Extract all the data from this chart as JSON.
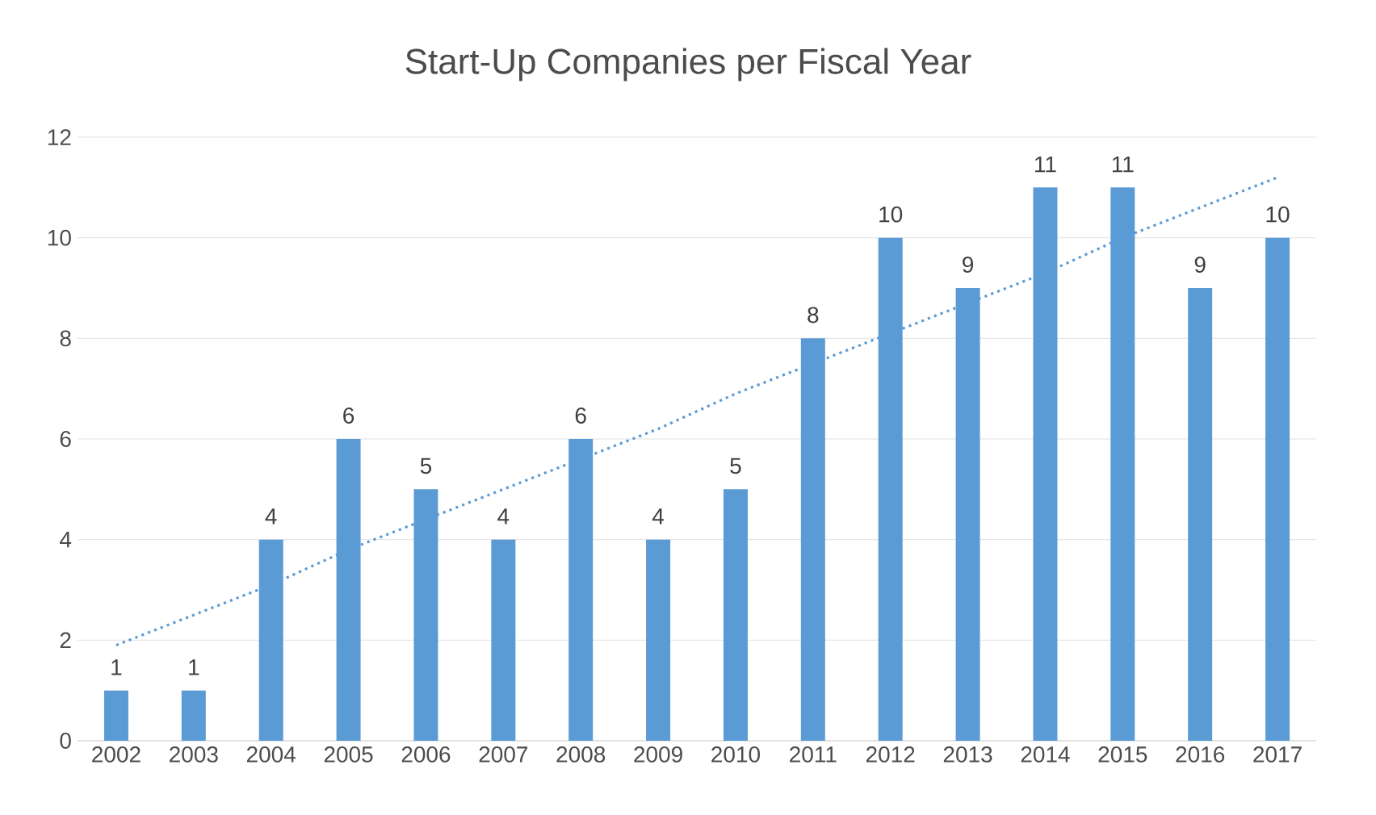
{
  "chart_data": {
    "type": "bar",
    "title": "Start-Up Companies per Fiscal Year",
    "categories": [
      "2002",
      "2003",
      "2004",
      "2005",
      "2006",
      "2007",
      "2008",
      "2009",
      "2010",
      "2011",
      "2012",
      "2013",
      "2014",
      "2015",
      "2016",
      "2017"
    ],
    "series": [
      {
        "color": "#5b9bd5",
        "data_labels": true,
        "values": [
          1,
          1,
          4,
          6,
          5,
          4,
          6,
          4,
          5,
          8,
          10,
          9,
          11,
          11,
          9,
          10
        ]
      },
      {
        "type": "line",
        "color": "#5b9bd5",
        "line_style": "dotted",
        "values": [
          1.9,
          2.5,
          3.1,
          3.8,
          4.4,
          5.0,
          5.6,
          6.2,
          6.9,
          7.5,
          8.1,
          8.7,
          9.3,
          10.0,
          10.6,
          11.2
        ]
      }
    ],
    "ylim": [
      0,
      12
    ],
    "yticks": [
      0,
      2,
      4,
      6,
      8,
      10,
      12
    ],
    "grid": "y"
  }
}
